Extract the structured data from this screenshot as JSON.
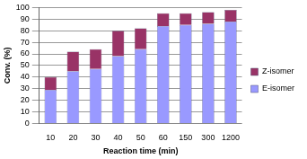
{
  "chart_data": {
    "type": "bar",
    "x_label": "Reaction time (min)",
    "y_label": "Conv. (%)",
    "categories": [
      "10",
      "20",
      "30",
      "40",
      "50",
      "60",
      "150",
      "300",
      "1200"
    ],
    "series": [
      {
        "name": "E-isomer",
        "color": "#9999ff",
        "values": [
          29,
          45,
          47,
          58,
          64,
          84,
          85,
          86,
          88
        ]
      },
      {
        "name": "Z-isomer",
        "color": "#993366",
        "values": [
          11,
          17,
          17,
          22,
          18,
          11,
          10,
          10,
          10
        ]
      }
    ],
    "stacked": true,
    "ylim": [
      0,
      100
    ],
    "yticks": [
      0,
      10,
      20,
      30,
      40,
      50,
      60,
      70,
      80,
      90,
      100
    ],
    "grid": true,
    "legend": "right"
  }
}
